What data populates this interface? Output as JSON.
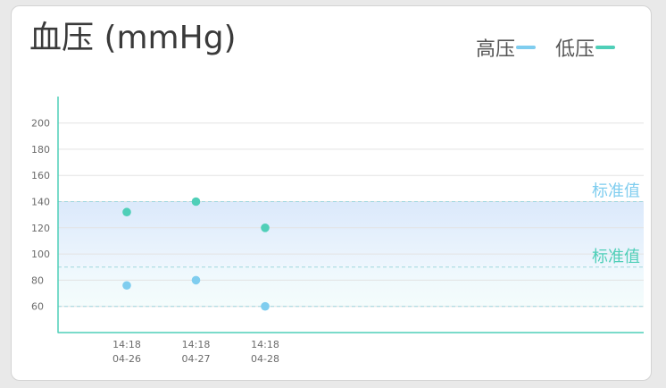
{
  "title": "血压 (mmHg)",
  "legend": [
    {
      "label": "高压",
      "color": "#7fcdef"
    },
    {
      "label": "低压",
      "color": "#4fcfb8"
    }
  ],
  "chart_data": {
    "type": "scatter",
    "title": "血压 (mmHg)",
    "x": [
      {
        "time": "14:18",
        "date": "04-26"
      },
      {
        "time": "14:18",
        "date": "04-27"
      },
      {
        "time": "14:18",
        "date": "04-28"
      }
    ],
    "series": [
      {
        "name": "高压",
        "color": "#7fcdef",
        "values": [
          76,
          80,
          60
        ]
      },
      {
        "name": "低压",
        "color": "#4fcfb8",
        "values": [
          132,
          140,
          120
        ]
      }
    ],
    "yticks": [
      60,
      80,
      100,
      120,
      140,
      160,
      180,
      200
    ],
    "ylim": [
      40,
      215
    ],
    "grid": true,
    "legend_position": "top-right",
    "reference_bands": [
      {
        "label": "标准值",
        "from": 90,
        "to": 140,
        "color": "#7fcdef"
      },
      {
        "label": "标准值",
        "from": 60,
        "to": 90,
        "color": "#4fcfb8"
      }
    ]
  }
}
